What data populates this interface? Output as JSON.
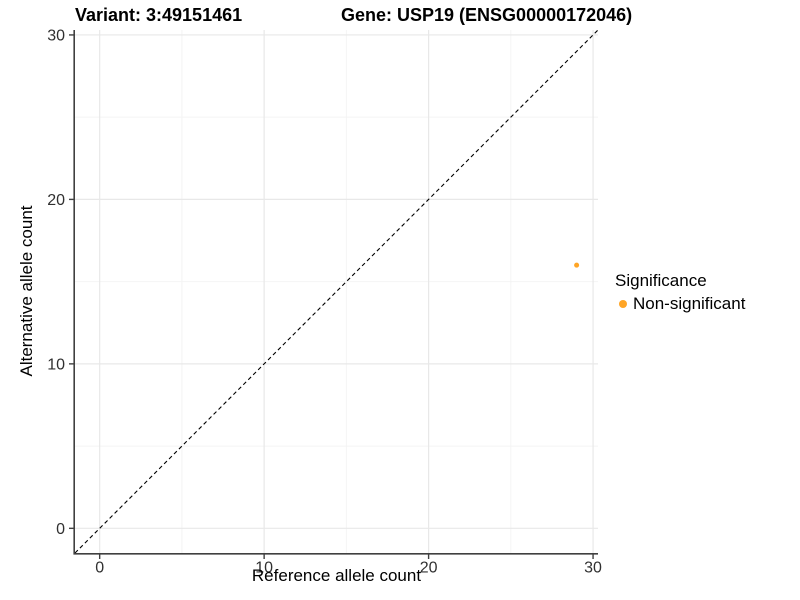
{
  "header": {
    "variant_title": "Variant: 3:49151461",
    "gene_title": "Gene: USP19 (ENSG00000172046)"
  },
  "chart_data": {
    "type": "scatter",
    "xlabel": "Reference allele count",
    "ylabel": "Alternative allele count",
    "xlim": [
      -1.5,
      30.3
    ],
    "ylim": [
      -1.5,
      30.3
    ],
    "x_major_ticks": [
      0,
      10,
      20,
      30
    ],
    "y_major_ticks": [
      0,
      10,
      20,
      30
    ],
    "x_minor_ticks": [
      5,
      15,
      25
    ],
    "y_minor_ticks": [
      5,
      15,
      25
    ],
    "grid": true,
    "colors": {
      "major_grid": "#e8e8e8",
      "minor_grid": "#f4f4f4",
      "axis_line": "#404040",
      "tick_text": "#303030",
      "identity_line": "#000000"
    },
    "identity_line": {
      "style": "dashed",
      "from": [
        -1.5,
        -1.5
      ],
      "to": [
        30.3,
        30.3
      ]
    },
    "series": [
      {
        "name": "Non-significant",
        "color": "#FFA526",
        "points": [
          {
            "x": 29,
            "y": 16
          }
        ]
      }
    ],
    "legend": {
      "title": "Significance",
      "position": "right",
      "entries": [
        {
          "label": "Non-significant",
          "color": "#FFA526"
        }
      ]
    }
  }
}
